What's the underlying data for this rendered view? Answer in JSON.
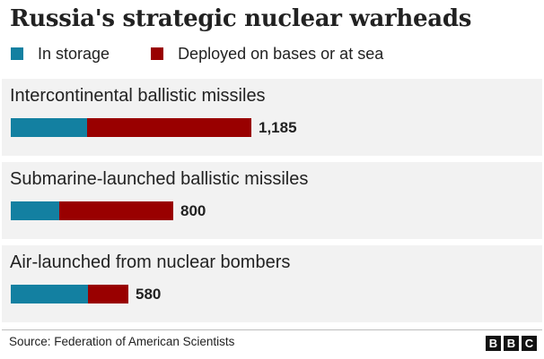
{
  "chart_data": {
    "type": "bar",
    "stacked": true,
    "orientation": "horizontal",
    "title": "Russia's strategic nuclear warheads",
    "categories": [
      "Intercontinental ballistic missiles",
      "Submarine-launched ballistic missiles",
      "Air-launched from nuclear bombers"
    ],
    "series": [
      {
        "name": "In storage",
        "color": "#1380a1",
        "values": [
          374,
          240,
          380
        ]
      },
      {
        "name": "Deployed on bases or at sea",
        "color": "#990000",
        "values": [
          811,
          560,
          200
        ]
      }
    ],
    "totals": [
      "1,185",
      "800",
      "580"
    ],
    "xlim": [
      0,
      1185
    ],
    "grid": false,
    "legend_position": "top"
  },
  "footer": {
    "source": "Source: Federation of American Scientists",
    "logo_letters": [
      "B",
      "B",
      "C"
    ]
  }
}
